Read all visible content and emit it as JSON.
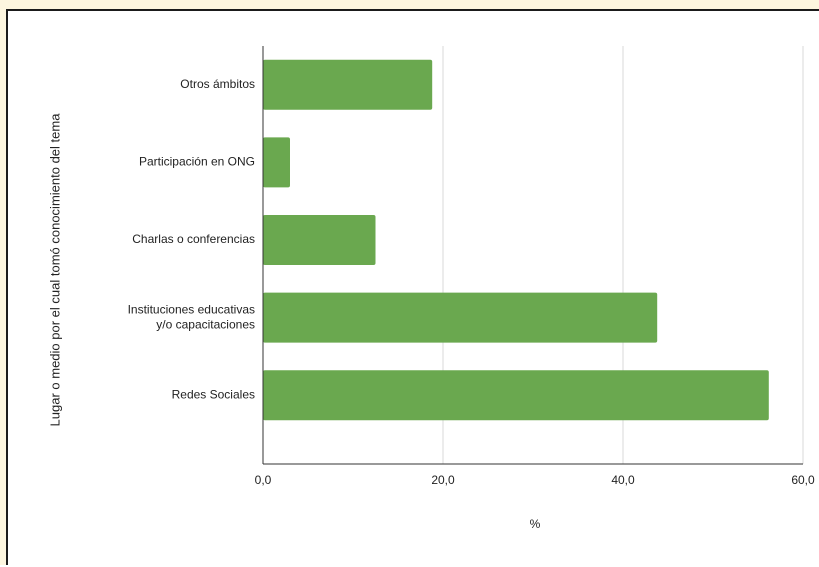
{
  "chart_data": {
    "type": "bar",
    "orientation": "horizontal",
    "categories": [
      "Otros ámbitos",
      "Participación en ONG",
      "Charlas o conferencias",
      "Instituciones educativas y/o capacitaciones",
      "Redes Sociales"
    ],
    "category_label_lines": [
      [
        "Otros ámbitos"
      ],
      [
        "Participación en ONG"
      ],
      [
        "Charlas o conferencias"
      ],
      [
        "Instituciones educativas",
        "y/o capacitaciones"
      ],
      [
        "Redes Sociales"
      ]
    ],
    "values": [
      18.8,
      3.0,
      12.5,
      43.8,
      56.2
    ],
    "xlabel": "%",
    "ylabel": "Lugar o medio por el cual tomó conocimiento del tema",
    "xlim": [
      0,
      60
    ],
    "xticks": [
      0,
      20,
      40,
      60
    ],
    "xtick_labels": [
      "0,0",
      "20,0",
      "40,0",
      "60,0"
    ],
    "grid": "vertical",
    "legend": "none",
    "colors": {
      "bar": "#6aa84f",
      "grid": "#d9d9d9",
      "axis": "#333333"
    }
  }
}
